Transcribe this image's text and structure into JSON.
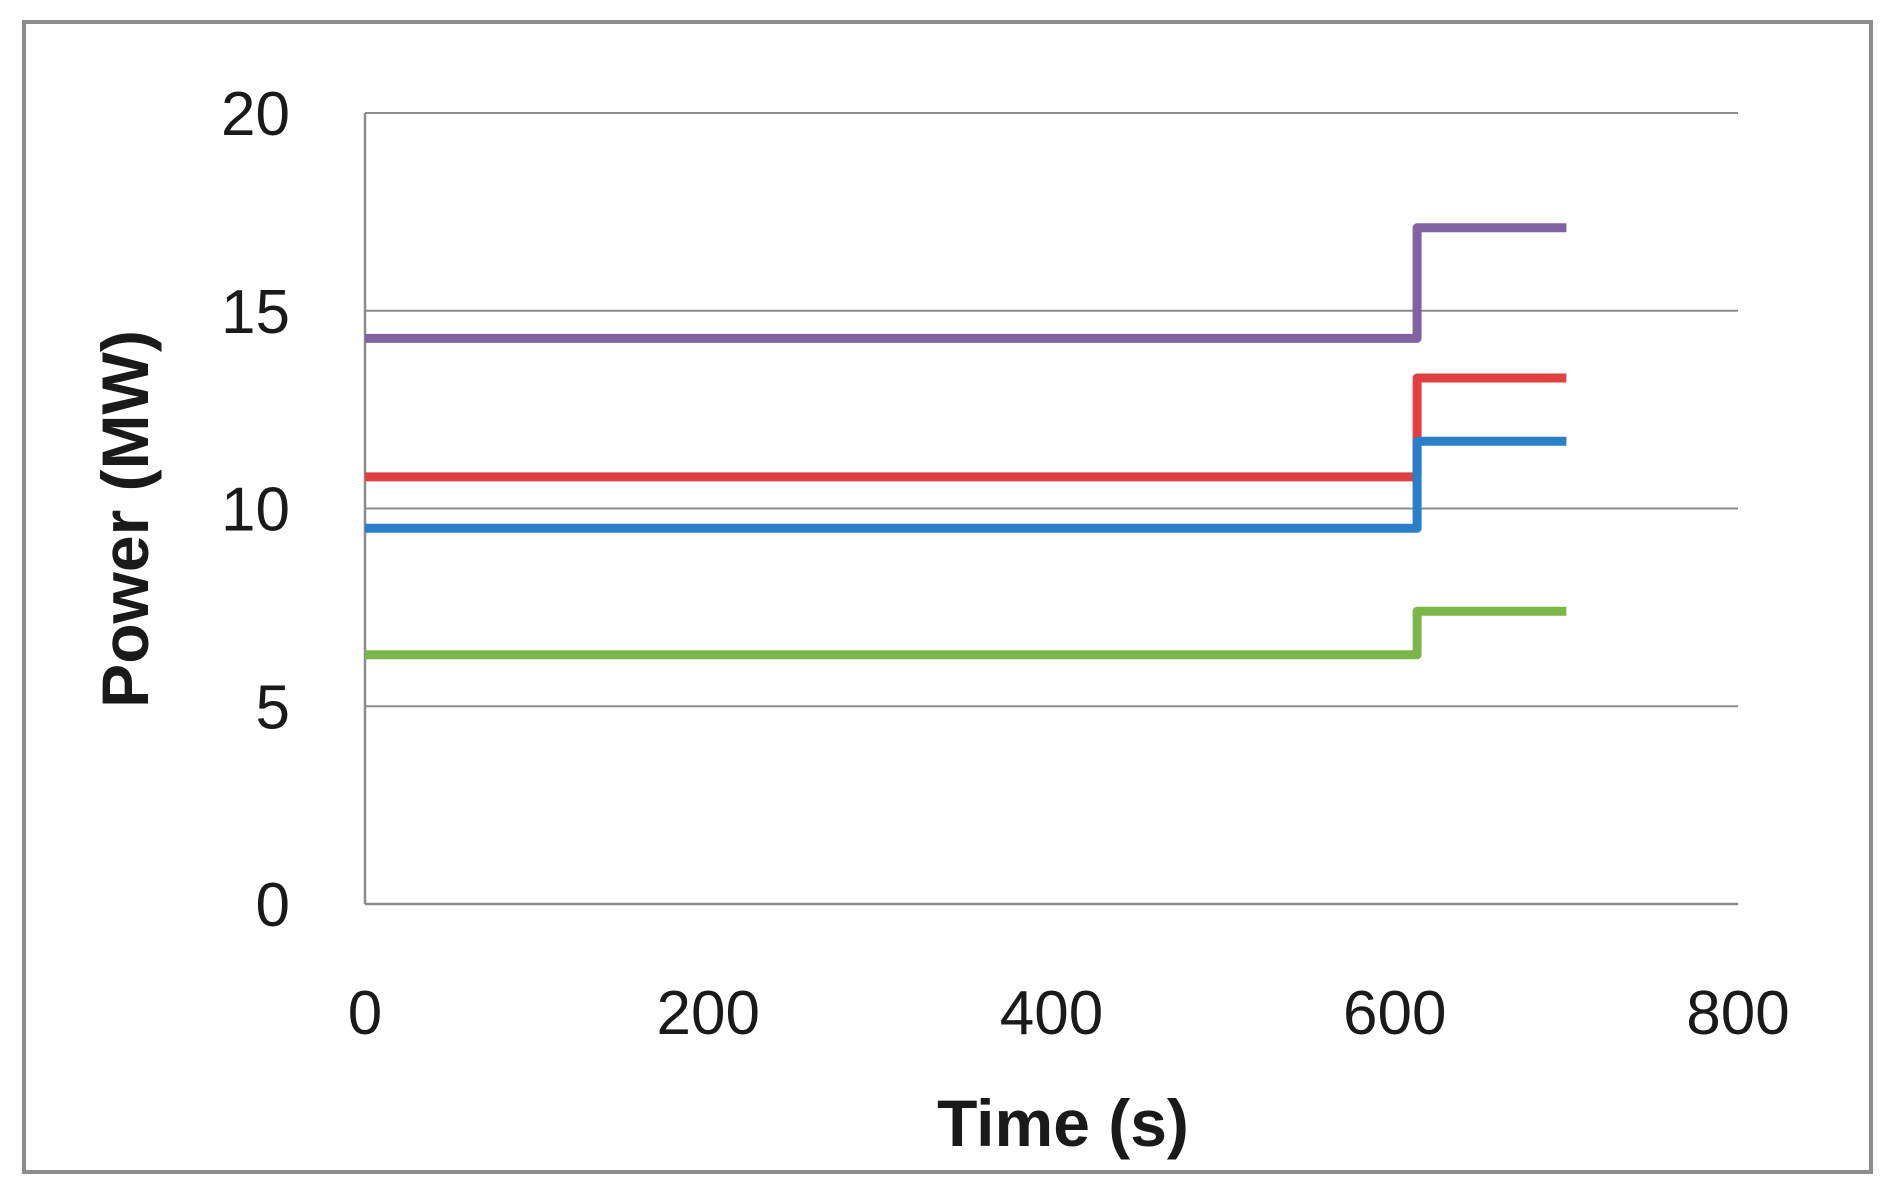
{
  "chart_data": {
    "type": "line",
    "title": "",
    "xlabel": "Time (s)",
    "ylabel": "Power (MW)",
    "xlim": [
      0,
      800
    ],
    "ylim": [
      0,
      20
    ],
    "x_ticks": [
      "0",
      "200",
      "400",
      "600",
      "800"
    ],
    "y_ticks": [
      "0",
      "5",
      "10",
      "15",
      "20"
    ],
    "grid": "horizontal",
    "legend": "none",
    "series": [
      {
        "color": "#8064a2",
        "x": [
          0,
          613,
          613,
          700
        ],
        "y": [
          14.3,
          14.3,
          17.1,
          17.1
        ]
      },
      {
        "color": "#e04040",
        "x": [
          0,
          613,
          613,
          700
        ],
        "y": [
          10.8,
          10.8,
          13.3,
          13.3
        ]
      },
      {
        "color": "#2a7fc8",
        "x": [
          0,
          613,
          613,
          700
        ],
        "y": [
          9.5,
          9.5,
          11.7,
          11.7
        ]
      },
      {
        "color": "#7ab648",
        "x": [
          0,
          613,
          613,
          700
        ],
        "y": [
          6.3,
          6.3,
          7.4,
          7.4
        ]
      }
    ]
  }
}
